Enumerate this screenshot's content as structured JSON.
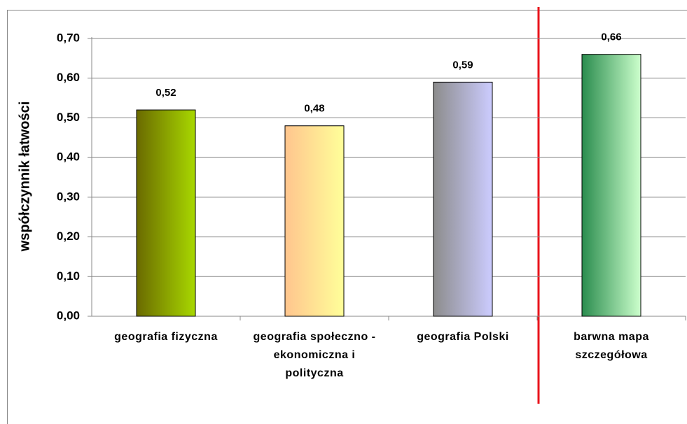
{
  "chart_data": {
    "type": "bar",
    "ylabel": "współczynnik łatwości",
    "categories": [
      "geografia fizyczna",
      "geografia społeczno - ekonomiczna i polityczna",
      "geografia Polski",
      "barwna mapa szczegółowa"
    ],
    "values": [
      0.52,
      0.48,
      0.59,
      0.66
    ],
    "value_labels": [
      "0,52",
      "0,48",
      "0,59",
      "0,66"
    ],
    "colors": [
      [
        "#6a6a00",
        "#a8d800"
      ],
      [
        "#ffc58e",
        "#ffff99"
      ],
      [
        "#8c8c8c",
        "#ccccff"
      ],
      [
        "#2a8c4e",
        "#ccffcc"
      ]
    ],
    "ylim": [
      0,
      0.7
    ],
    "yticks": [
      {
        "value": 0,
        "label": "0,00"
      },
      {
        "value": 0.1,
        "label": "0,10"
      },
      {
        "value": 0.2,
        "label": "0,20"
      },
      {
        "value": 0.3,
        "label": "0,30"
      },
      {
        "value": 0.4,
        "label": "0,40"
      },
      {
        "value": 0.5,
        "label": "0,50"
      },
      {
        "value": 0.6,
        "label": "0,60"
      },
      {
        "value": 0.7,
        "label": "0,70"
      }
    ],
    "grid": true
  }
}
